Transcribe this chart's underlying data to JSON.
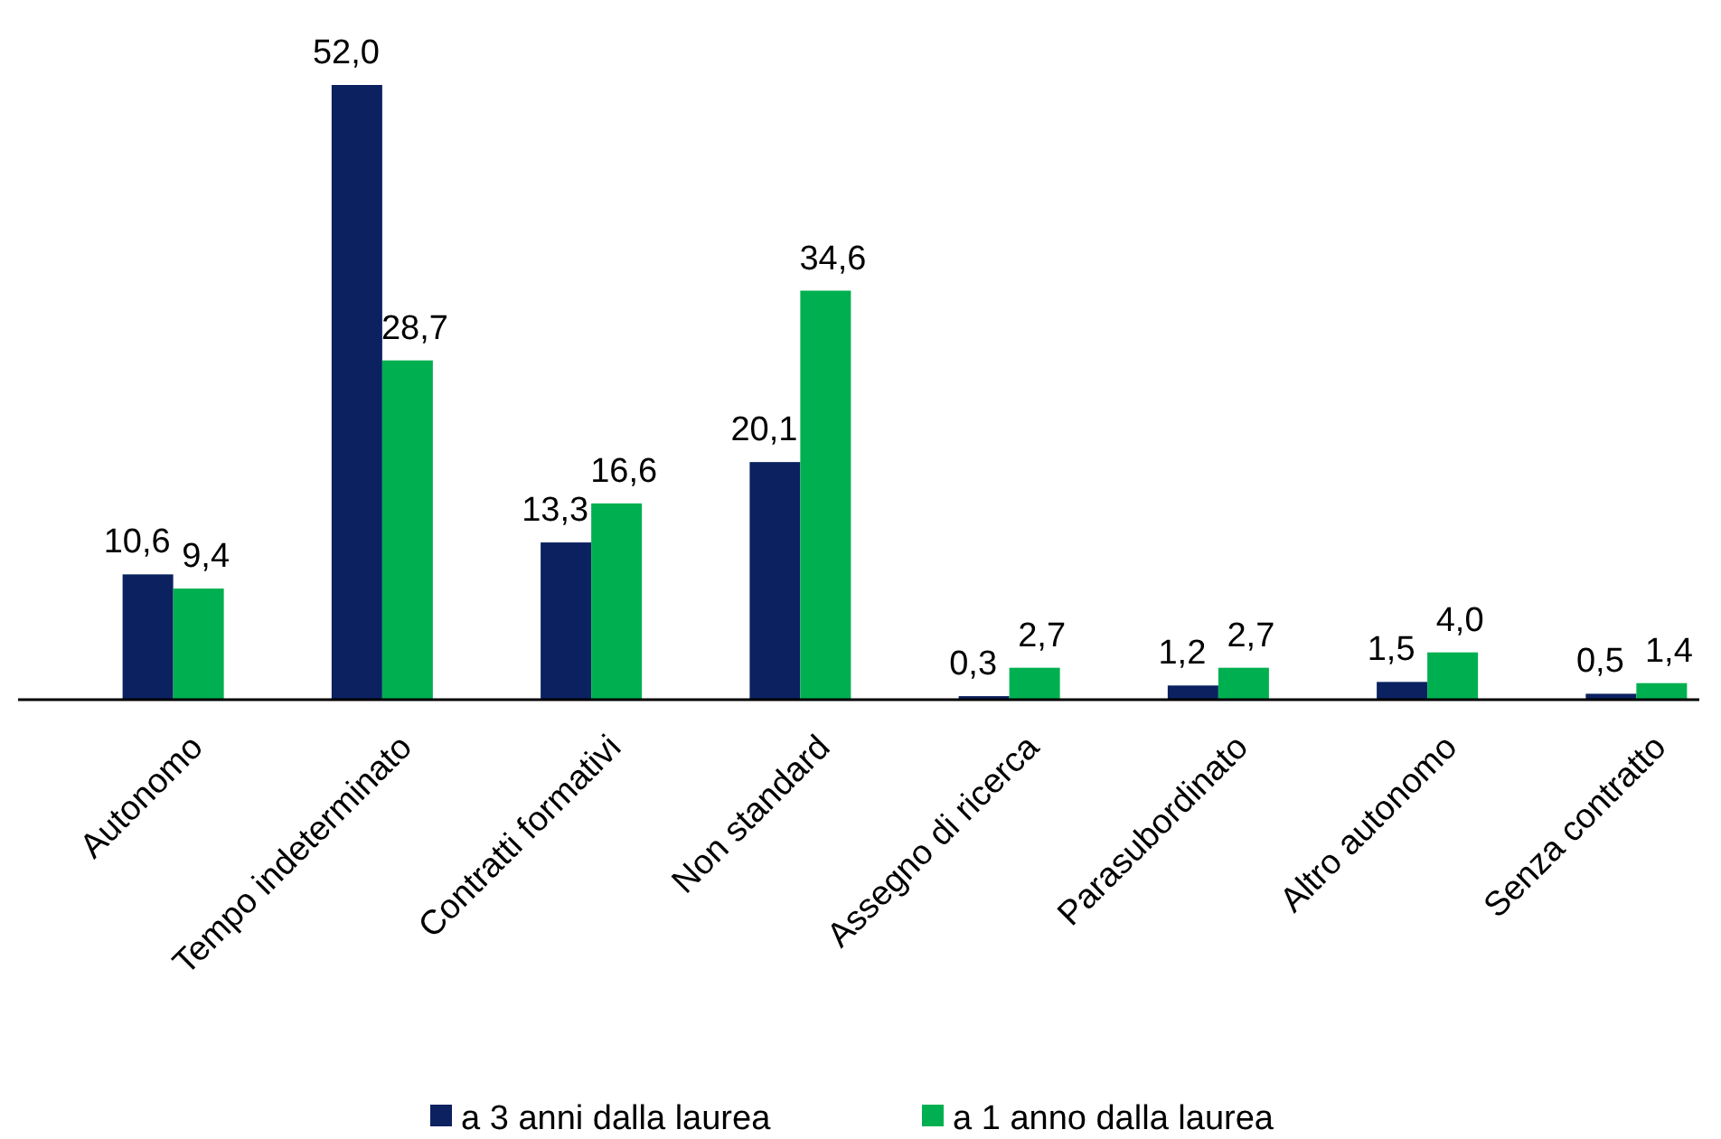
{
  "chart_data": {
    "type": "bar",
    "categories": [
      "Autonomo",
      "Tempo indeterminato",
      "Contratti formativi",
      "Non standard",
      "Assegno di ricerca",
      "Parasubordinato",
      "Altro autonomo",
      "Senza contratto"
    ],
    "series": [
      {
        "name": "a 3 anni dalla laurea",
        "color": "#0b2160",
        "values": [
          10.6,
          52.0,
          13.3,
          20.1,
          0.3,
          1.2,
          1.5,
          0.5
        ],
        "value_labels": [
          "10,6",
          "52,0",
          "13,3",
          "20,1",
          "0,3",
          "1,2",
          "1,5",
          "0,5"
        ]
      },
      {
        "name": "a 1 anno dalla laurea",
        "color": "#00b050",
        "values": [
          9.4,
          28.7,
          16.6,
          34.6,
          2.7,
          2.7,
          4.0,
          1.4
        ],
        "value_labels": [
          "9,4",
          "28,7",
          "16,6",
          "34,6",
          "2,7",
          "2,7",
          "4,0",
          "1,4"
        ]
      }
    ],
    "legend": "bottom"
  }
}
